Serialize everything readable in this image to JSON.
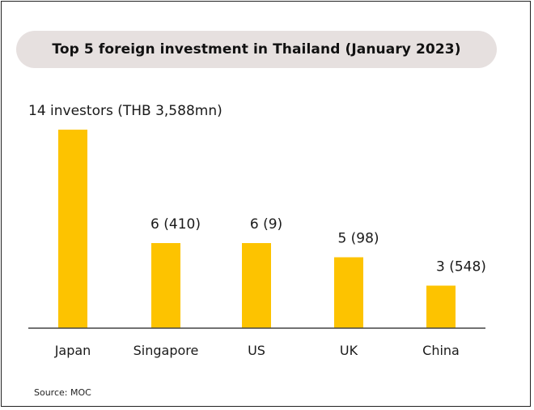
{
  "title": "Top 5 foreign investment in Thailand (January 2023)",
  "source": "Source: MOC",
  "colors": {
    "bar": "#fdc300",
    "title_bg": "#e6e0df",
    "axis": "#444444"
  },
  "chart_data": {
    "type": "bar",
    "title": "Top 5 foreign investment in Thailand (January 2023)",
    "xlabel": "",
    "ylabel": "",
    "categories": [
      "Japan",
      "Singapore",
      "US",
      "UK",
      "China"
    ],
    "values": [
      14,
      6,
      6,
      5,
      3
    ],
    "investment_thb_mn": [
      3588,
      410,
      9,
      98,
      548
    ],
    "data_labels": [
      "14 investors (THB 3,588mn)",
      "6 (410)",
      "6 (9)",
      "5 (98)",
      "3 (548)"
    ],
    "ylim": [
      0,
      14
    ],
    "grid": false,
    "legend": "none"
  }
}
